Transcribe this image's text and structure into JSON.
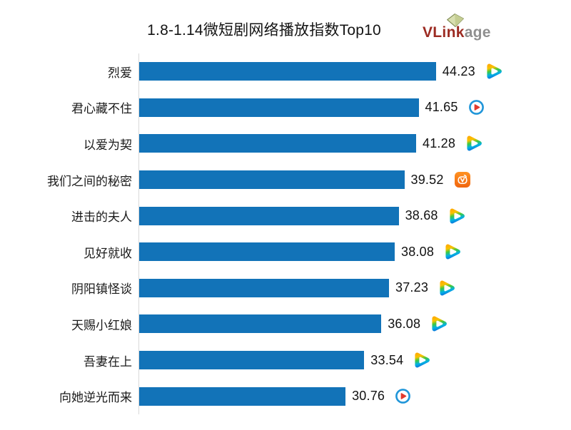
{
  "header": {
    "logo": {
      "brand_bold": "VLink",
      "brand_light": "age",
      "brand_color": "#9c2b22",
      "brand_light_color": "#8f8f8f",
      "icon": "diamond-card-icon"
    }
  },
  "chart_data": {
    "type": "bar",
    "orientation": "horizontal",
    "title": "1.8-1.14微短剧网络播放指数Top10",
    "categories": [
      "烈爱",
      "君心藏不住",
      "以爱为契",
      "我们之间的秘密",
      "进击的夫人",
      "见好就收",
      "阴阳镇怪谈",
      "天赐小红娘",
      "吾妻在上",
      "向她逆光而来"
    ],
    "values": [
      44.23,
      41.65,
      41.28,
      39.52,
      38.68,
      38.08,
      37.23,
      36.08,
      33.54,
      30.76
    ],
    "platforms": [
      "tencent-video",
      "youku",
      "tencent-video",
      "mango-tv",
      "tencent-video",
      "tencent-video",
      "tencent-video",
      "tencent-video",
      "tencent-video",
      "youku"
    ],
    "bar_color": "#1273b8",
    "axis_line_color": "#d9d9d9",
    "xlim": [
      0,
      47
    ],
    "grid": false,
    "legend": false,
    "value_labels": "end-of-bar"
  }
}
